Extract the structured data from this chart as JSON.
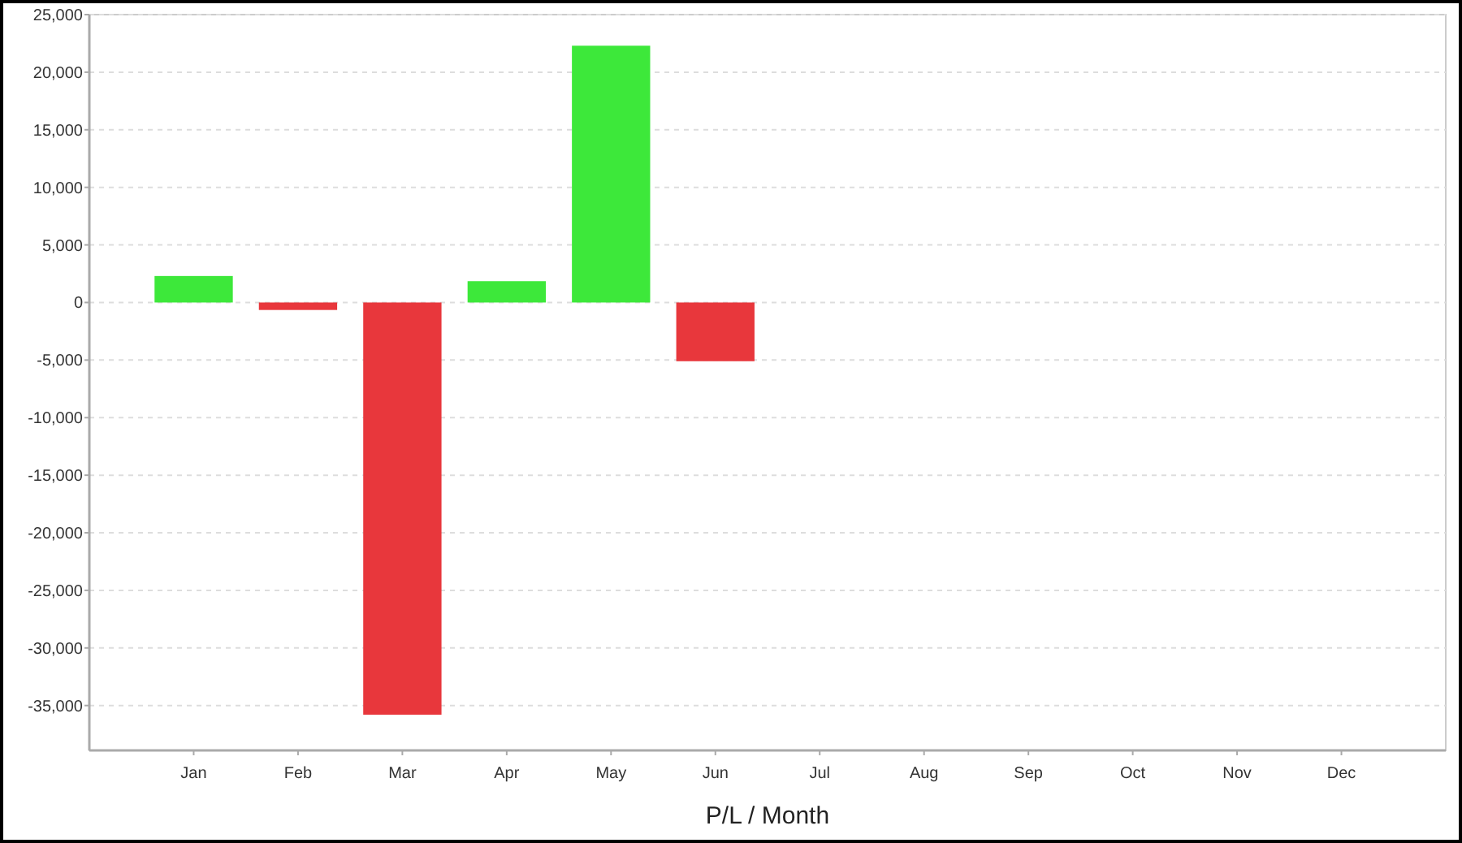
{
  "chart_data": {
    "type": "bar",
    "xlabel": "P/L / Month",
    "categories": [
      "Jan",
      "Feb",
      "Mar",
      "Apr",
      "May",
      "Jun",
      "Jul",
      "Aug",
      "Sep",
      "Oct",
      "Nov",
      "Dec"
    ],
    "values": [
      2300,
      -650,
      -35800,
      1850,
      22300,
      -5100,
      null,
      null,
      null,
      null,
      null,
      null
    ],
    "colors": [
      "#3de83a",
      "#e8373c",
      "#e8373c",
      "#3de83a",
      "#3de83a",
      "#e8373c",
      null,
      null,
      null,
      null,
      null,
      null
    ],
    "ylim": [
      -38900,
      25000
    ],
    "yticks": [
      {
        "value": -35000,
        "label": "-35,000"
      },
      {
        "value": -30000,
        "label": "-30,000"
      },
      {
        "value": -25000,
        "label": "-25,000"
      },
      {
        "value": -20000,
        "label": "-20,000"
      },
      {
        "value": -15000,
        "label": "-15,000"
      },
      {
        "value": -10000,
        "label": "-10,000"
      },
      {
        "value": -5000,
        "label": "-5,000"
      },
      0,
      {
        "value": 5000,
        "label": "5,000"
      },
      {
        "value": 10000,
        "label": "10,000"
      },
      {
        "value": 15000,
        "label": "15,000"
      },
      {
        "value": 20000,
        "label": "20,000"
      },
      {
        "value": 25000,
        "label": "25,000"
      }
    ],
    "grid": "y"
  }
}
